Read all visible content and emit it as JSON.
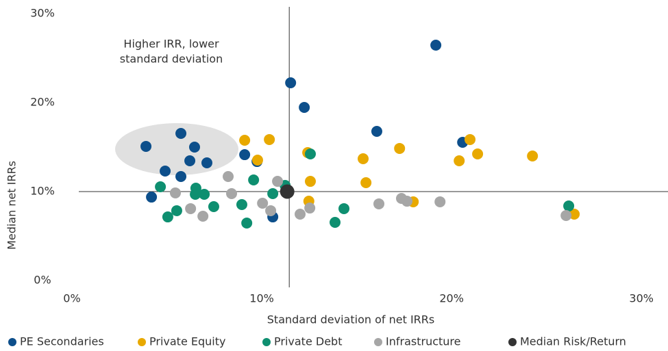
{
  "chart_data": {
    "type": "scatter",
    "annotation": [
      "Higher IRR, lower",
      "standard deviation"
    ],
    "xlabel": "Standard deviation of net IRRs",
    "ylabel": "Median net IRRs",
    "xlim": [
      0,
      31.4
    ],
    "ylim": [
      0,
      30
    ],
    "xticks": [
      {
        "value": 0,
        "label": "0%"
      },
      {
        "value": 10,
        "label": "10%"
      },
      {
        "value": 20,
        "label": "20%"
      },
      {
        "value": 30,
        "label": "30%"
      }
    ],
    "yticks": [
      {
        "value": 0,
        "label": "0%"
      },
      {
        "value": 10,
        "label": "10%"
      },
      {
        "value": 20,
        "label": "20%"
      },
      {
        "value": 30,
        "label": "30%"
      }
    ],
    "series": [
      {
        "name": "PE Secondaries",
        "color": "#0d4f8b",
        "x": [
          19.17,
          11.52,
          12.24,
          16.06,
          20.58,
          5.74,
          3.9,
          6.46,
          9.1,
          6.21,
          7.11,
          9.75,
          4.91,
          5.74,
          4.19,
          10.58
        ],
        "y": [
          26.46,
          22.23,
          19.46,
          16.77,
          15.54,
          16.54,
          15.08,
          15.0,
          14.15,
          13.46,
          13.23,
          13.38,
          12.31,
          11.69,
          9.38,
          7.15
        ]
      },
      {
        "name": "Private Equity",
        "color": "#e8a900",
        "x": [
          9.1,
          10.4,
          9.78,
          12.42,
          12.56,
          12.48,
          15.34,
          15.49,
          17.26,
          17.98,
          20.97,
          21.37,
          20.4,
          24.26,
          26.46
        ],
        "y": [
          15.77,
          15.85,
          13.54,
          14.38,
          11.15,
          8.92,
          13.69,
          11.0,
          14.85,
          8.85,
          15.85,
          14.23,
          13.46,
          14.0,
          7.46
        ]
      },
      {
        "name": "Private Debt",
        "color": "#0e8f70",
        "x": [
          4.66,
          5.05,
          5.52,
          6.53,
          6.5,
          6.97,
          7.47,
          8.95,
          9.21,
          9.57,
          10.58,
          11.23,
          12.56,
          14.33,
          13.86,
          26.17
        ],
        "y": [
          10.54,
          7.15,
          7.85,
          10.38,
          9.69,
          9.69,
          8.31,
          8.54,
          6.46,
          11.31,
          9.77,
          10.69,
          14.23,
          8.08,
          6.54,
          8.38
        ]
      },
      {
        "name": "Infrastructure",
        "color": "#a6a6a6",
        "x": [
          5.45,
          6.25,
          6.9,
          8.23,
          8.41,
          10.04,
          10.47,
          10.83,
          12.02,
          12.53,
          16.17,
          17.36,
          17.65,
          19.39,
          26.03
        ],
        "y": [
          9.85,
          8.08,
          7.23,
          11.69,
          9.77,
          8.69,
          7.85,
          11.15,
          7.46,
          8.15,
          8.62,
          9.23,
          8.92,
          8.85,
          7.31
        ]
      },
      {
        "name": "Median Risk/Return",
        "color": "#333333",
        "x": [
          11.34
        ],
        "y": [
          10.0
        ]
      }
    ]
  }
}
